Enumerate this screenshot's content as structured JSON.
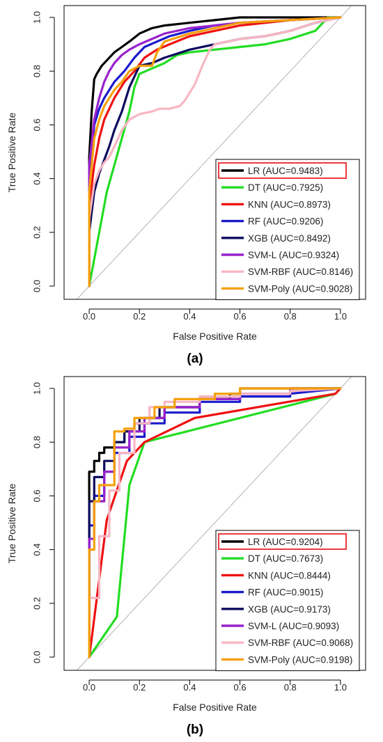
{
  "chart_data": [
    {
      "type": "line",
      "panel_label": "(a)",
      "xlabel": "False Positive Rate",
      "ylabel": "True Positive Rate",
      "xlim": [
        -0.1,
        1.1
      ],
      "ylim": [
        0.0,
        1.0
      ],
      "xticks": [
        "0.0",
        "0.2",
        "0.4",
        "0.6",
        "0.8",
        "1.0"
      ],
      "yticks": [
        "0.0",
        "0.2",
        "0.4",
        "0.6",
        "0.8",
        "1.0"
      ],
      "grid": false,
      "legend_position": "bottom-right",
      "diagonal_reference": true,
      "series": [
        {
          "name": "LR (AUC=0.9483)",
          "color": "#000000",
          "highlighted": true,
          "x": [
            0,
            0,
            0.01,
            0.02,
            0.03,
            0.05,
            0.07,
            0.1,
            0.13,
            0.16,
            0.2,
            0.25,
            0.3,
            0.4,
            0.5,
            0.6,
            0.8,
            0.92,
            1.0
          ],
          "y": [
            0,
            0.48,
            0.65,
            0.77,
            0.79,
            0.82,
            0.84,
            0.87,
            0.89,
            0.91,
            0.94,
            0.96,
            0.97,
            0.98,
            0.99,
            1.0,
            1.0,
            1.0,
            1.0
          ]
        },
        {
          "name": "DT (AUC=0.7925)",
          "color": "#22dd22",
          "highlighted": false,
          "x": [
            0,
            0.01,
            0.03,
            0.05,
            0.07,
            0.1,
            0.13,
            0.16,
            0.18,
            0.2,
            0.25,
            0.3,
            0.35,
            0.4,
            0.5,
            0.6,
            0.7,
            0.8,
            0.9,
            0.95,
            1.0
          ],
          "y": [
            0,
            0.05,
            0.15,
            0.25,
            0.35,
            0.45,
            0.55,
            0.65,
            0.74,
            0.79,
            0.81,
            0.83,
            0.86,
            0.87,
            0.88,
            0.89,
            0.9,
            0.92,
            0.95,
            1.0,
            1.0
          ]
        },
        {
          "name": "KNN (AUC=0.8973)",
          "color": "#ee1111",
          "highlighted": false,
          "x": [
            0,
            0,
            0.02,
            0.04,
            0.06,
            0.1,
            0.14,
            0.18,
            0.22,
            0.27,
            0.32,
            0.4,
            0.5,
            0.6,
            0.8,
            1.0
          ],
          "y": [
            0,
            0.3,
            0.45,
            0.55,
            0.62,
            0.7,
            0.76,
            0.8,
            0.85,
            0.88,
            0.9,
            0.93,
            0.95,
            0.97,
            0.99,
            1.0
          ]
        },
        {
          "name": "RF (AUC=0.9206)",
          "color": "#1a1acc",
          "highlighted": false,
          "x": [
            0,
            0,
            0.02,
            0.04,
            0.06,
            0.1,
            0.14,
            0.18,
            0.22,
            0.27,
            0.32,
            0.4,
            0.5,
            0.6,
            0.8,
            1.0
          ],
          "y": [
            0,
            0.38,
            0.6,
            0.66,
            0.7,
            0.76,
            0.8,
            0.85,
            0.89,
            0.91,
            0.93,
            0.95,
            0.97,
            0.98,
            0.99,
            1.0
          ]
        },
        {
          "name": "XGB (AUC=0.8492)",
          "color": "#0b0b5e",
          "highlighted": false,
          "x": [
            0,
            0,
            0.02,
            0.04,
            0.06,
            0.08,
            0.1,
            0.13,
            0.16,
            0.2,
            0.25,
            0.3,
            0.4,
            0.5,
            0.6,
            0.7,
            0.8,
            0.9,
            1.0
          ],
          "y": [
            0,
            0.2,
            0.35,
            0.42,
            0.47,
            0.52,
            0.58,
            0.65,
            0.74,
            0.82,
            0.83,
            0.85,
            0.88,
            0.9,
            0.92,
            0.93,
            0.95,
            0.98,
            1.0
          ]
        },
        {
          "name": "SVM-L (AUC=0.9324)",
          "color": "#9922cc",
          "highlighted": false,
          "x": [
            0,
            0,
            0.02,
            0.04,
            0.06,
            0.08,
            0.1,
            0.13,
            0.16,
            0.2,
            0.25,
            0.3,
            0.4,
            0.5,
            0.6,
            0.8,
            1.0
          ],
          "y": [
            0,
            0.45,
            0.62,
            0.7,
            0.76,
            0.8,
            0.83,
            0.86,
            0.88,
            0.9,
            0.92,
            0.94,
            0.96,
            0.97,
            0.98,
            0.99,
            1.0
          ]
        },
        {
          "name": "SVM-RBF (AUC=0.8146)",
          "color": "#f7b6c2",
          "highlighted": false,
          "x": [
            0,
            0,
            0.02,
            0.04,
            0.06,
            0.08,
            0.1,
            0.13,
            0.16,
            0.2,
            0.25,
            0.28,
            0.32,
            0.36,
            0.38,
            0.42,
            0.45,
            0.48,
            0.5,
            0.6,
            0.7,
            0.8,
            0.9,
            1.0
          ],
          "y": [
            0,
            0.25,
            0.38,
            0.43,
            0.46,
            0.48,
            0.52,
            0.58,
            0.62,
            0.64,
            0.65,
            0.66,
            0.66,
            0.67,
            0.69,
            0.75,
            0.82,
            0.88,
            0.9,
            0.92,
            0.93,
            0.95,
            0.98,
            1.0
          ]
        },
        {
          "name": "SVM-Poly (AUC=0.9028)",
          "color": "#f5a00a",
          "highlighted": false,
          "x": [
            0,
            0,
            0.02,
            0.04,
            0.06,
            0.08,
            0.1,
            0.13,
            0.16,
            0.2,
            0.25,
            0.27,
            0.3,
            0.4,
            0.5,
            0.6,
            0.8,
            1.0
          ],
          "y": [
            0,
            0.35,
            0.55,
            0.62,
            0.67,
            0.7,
            0.73,
            0.76,
            0.8,
            0.82,
            0.82,
            0.87,
            0.91,
            0.94,
            0.96,
            0.98,
            0.99,
            1.0
          ]
        }
      ]
    },
    {
      "type": "line",
      "panel_label": "(b)",
      "xlabel": "False Positive Rate",
      "ylabel": "True Positive Rate",
      "xlim": [
        -0.1,
        1.1
      ],
      "ylim": [
        0.0,
        1.0
      ],
      "xticks": [
        "0.0",
        "0.2",
        "0.4",
        "0.6",
        "0.8",
        "1.0"
      ],
      "yticks": [
        "0.0",
        "0.2",
        "0.4",
        "0.6",
        "0.8",
        "1.0"
      ],
      "grid": false,
      "legend_position": "bottom-right",
      "diagonal_reference": true,
      "series": [
        {
          "name": "LR (AUC=0.9204)",
          "color": "#000000",
          "highlighted": true,
          "x": [
            0,
            0,
            0.02,
            0.02,
            0.04,
            0.04,
            0.06,
            0.06,
            0.1,
            0.1,
            0.14,
            0.14,
            0.18,
            0.18,
            0.24,
            0.24,
            0.3,
            0.3,
            0.44,
            0.44,
            0.56,
            0.56,
            0.6,
            0.6,
            0.8,
            0.8,
            1.0
          ],
          "y": [
            0,
            0.69,
            0.69,
            0.73,
            0.73,
            0.76,
            0.76,
            0.78,
            0.78,
            0.8,
            0.8,
            0.84,
            0.84,
            0.87,
            0.87,
            0.89,
            0.89,
            0.93,
            0.93,
            0.96,
            0.96,
            0.98,
            0.98,
            1.0,
            1.0,
            1.0,
            1.0
          ]
        },
        {
          "name": "DT (AUC=0.7673)",
          "color": "#22dd22",
          "highlighted": false,
          "x": [
            0,
            0.11,
            0.16,
            0.22,
            0.98,
            1.0
          ],
          "y": [
            0,
            0.15,
            0.64,
            0.8,
            0.98,
            1.0
          ]
        },
        {
          "name": "KNN (AUC=0.8444)",
          "color": "#ee1111",
          "highlighted": false,
          "x": [
            0,
            0.01,
            0.07,
            0.15,
            0.22,
            0.42,
            0.98,
            1.0
          ],
          "y": [
            0,
            0.07,
            0.51,
            0.73,
            0.8,
            0.89,
            0.98,
            1.0
          ]
        },
        {
          "name": "RF (AUC=0.9015)",
          "color": "#1a1acc",
          "highlighted": false,
          "x": [
            0,
            0,
            0.02,
            0.02,
            0.06,
            0.06,
            0.1,
            0.1,
            0.16,
            0.16,
            0.22,
            0.22,
            0.3,
            0.3,
            0.44,
            0.44,
            0.6,
            0.6,
            0.8,
            0.8,
            1.0
          ],
          "y": [
            0,
            0.49,
            0.49,
            0.6,
            0.6,
            0.69,
            0.69,
            0.76,
            0.76,
            0.82,
            0.82,
            0.87,
            0.87,
            0.91,
            0.91,
            0.95,
            0.95,
            0.97,
            0.97,
            0.98,
            1.0
          ]
        },
        {
          "name": "XGB (AUC=0.9173)",
          "color": "#0b0b5e",
          "highlighted": false,
          "x": [
            0,
            0,
            0.02,
            0.02,
            0.06,
            0.06,
            0.1,
            0.1,
            0.14,
            0.14,
            0.2,
            0.2,
            0.28,
            0.28,
            0.44,
            0.44,
            0.6,
            0.6,
            0.8,
            0.8,
            1.0
          ],
          "y": [
            0,
            0.58,
            0.58,
            0.67,
            0.67,
            0.73,
            0.73,
            0.8,
            0.8,
            0.84,
            0.84,
            0.89,
            0.89,
            0.93,
            0.93,
            0.96,
            0.96,
            0.98,
            0.98,
            1.0,
            1.0
          ]
        },
        {
          "name": "SVM-L (AUC=0.9093)",
          "color": "#9922cc",
          "highlighted": false,
          "x": [
            0,
            0,
            0.02,
            0.02,
            0.06,
            0.06,
            0.1,
            0.1,
            0.16,
            0.16,
            0.22,
            0.22,
            0.3,
            0.3,
            0.44,
            0.44,
            0.6,
            0.6,
            0.8,
            0.8,
            1.0
          ],
          "y": [
            0,
            0.44,
            0.44,
            0.58,
            0.58,
            0.69,
            0.69,
            0.78,
            0.78,
            0.84,
            0.84,
            0.89,
            0.89,
            0.93,
            0.93,
            0.96,
            0.96,
            0.98,
            0.98,
            1.0,
            1.0
          ]
        },
        {
          "name": "SVM-RBF (AUC=0.9068)",
          "color": "#f7b6c2",
          "highlighted": false,
          "x": [
            0,
            0,
            0.04,
            0.04,
            0.08,
            0.08,
            0.12,
            0.12,
            0.18,
            0.18,
            0.24,
            0.24,
            0.3,
            0.3,
            0.44,
            0.44,
            0.6,
            0.6,
            0.8,
            0.8,
            1.0
          ],
          "y": [
            0,
            0.22,
            0.22,
            0.45,
            0.45,
            0.62,
            0.62,
            0.76,
            0.76,
            0.87,
            0.87,
            0.93,
            0.93,
            0.95,
            0.95,
            0.97,
            0.97,
            0.98,
            0.98,
            0.99,
            1.0
          ]
        },
        {
          "name": "SVM-Poly (AUC=0.9198)",
          "color": "#f5a00a",
          "highlighted": false,
          "x": [
            0,
            0,
            0.02,
            0.02,
            0.04,
            0.04,
            0.1,
            0.1,
            0.14,
            0.14,
            0.18,
            0.18,
            0.26,
            0.26,
            0.34,
            0.34,
            0.5,
            0.5,
            0.6,
            0.6,
            1.0
          ],
          "y": [
            0,
            0.4,
            0.4,
            0.58,
            0.58,
            0.64,
            0.64,
            0.84,
            0.84,
            0.85,
            0.85,
            0.89,
            0.89,
            0.93,
            0.93,
            0.96,
            0.96,
            0.98,
            0.98,
            1.0,
            1.0
          ]
        }
      ]
    }
  ]
}
